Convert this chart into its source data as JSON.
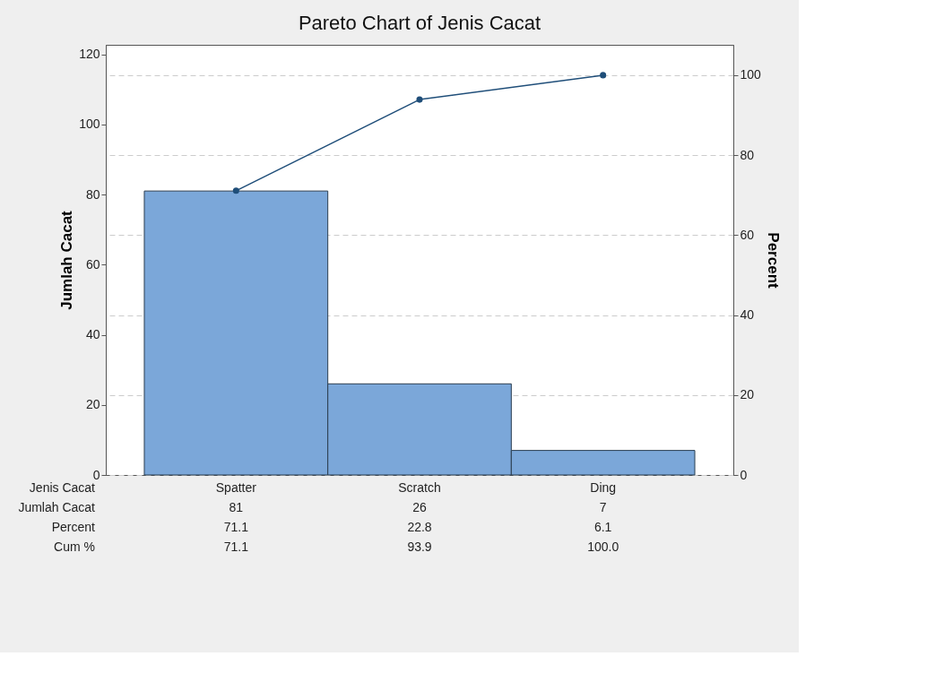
{
  "chart_data": {
    "type": "bar",
    "title": "Pareto Chart of Jenis Cacat",
    "xlabel": "Jenis Cacat",
    "ylabel": "Jumlah Cacat",
    "y2label": "Percent",
    "categories": [
      "Spatter",
      "Scratch",
      "Ding"
    ],
    "series": [
      {
        "color": "#7ba7d9",
        "values": [
          81,
          26,
          7
        ],
        "value_labels": [
          "81",
          "26",
          "7"
        ]
      },
      {
        "type": "line",
        "axis": "y2",
        "color": "#1f4e79",
        "values": [
          71.1,
          93.9,
          100.0
        ],
        "value_labels": [
          "71.1",
          "93.9",
          "100.0"
        ]
      }
    ],
    "annotations": [
      "Jumlah Cacat",
      "Percent",
      "Cum %",
      "71.1",
      "22.8",
      "6.1"
    ],
    "marker": "circle",
    "grid": true,
    "ylim": [
      0,
      122.7
    ],
    "yticks": [
      0,
      20,
      40,
      60,
      80,
      100,
      120
    ],
    "y2lim": [
      0,
      107.6
    ],
    "y2ticks": [
      0,
      20,
      40,
      60,
      80,
      100
    ]
  }
}
